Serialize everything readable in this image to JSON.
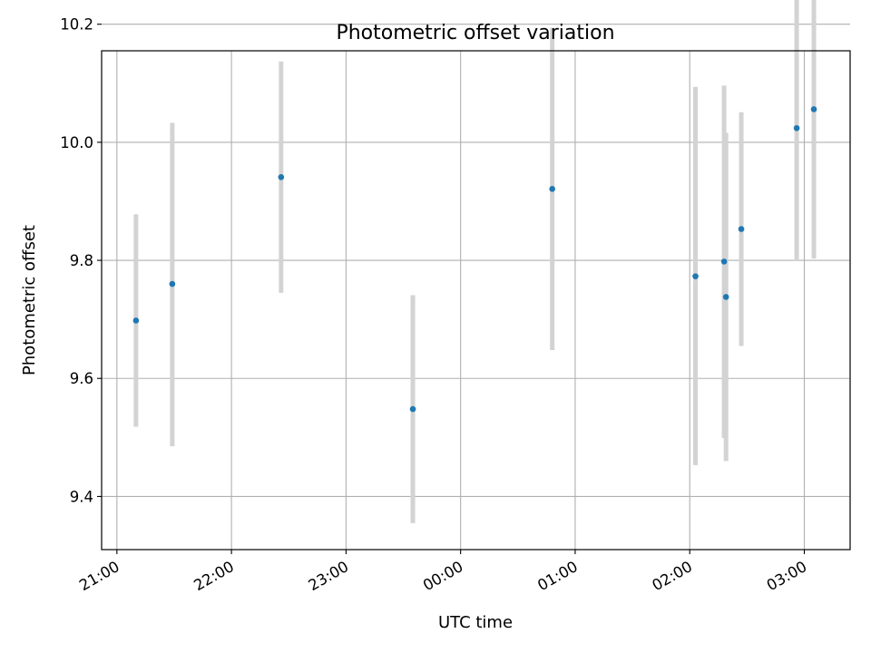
{
  "chart_data": {
    "type": "scatter",
    "title": "Photometric offset variation",
    "xlabel": "UTC time",
    "ylabel": "Photometric offset",
    "x_is_time": true,
    "x_axis_start_date": "2000-01-01",
    "xlim": [
      "2000-01-01T20:52",
      "2000-01-02T03:24"
    ],
    "ylim": [
      9.31,
      10.155
    ],
    "x_ticks": [
      {
        "time": "2000-01-01T21:00",
        "label": "21:00"
      },
      {
        "time": "2000-01-01T22:00",
        "label": "22:00"
      },
      {
        "time": "2000-01-01T23:00",
        "label": "23:00"
      },
      {
        "time": "2000-01-02T00:00",
        "label": "00:00"
      },
      {
        "time": "2000-01-02T01:00",
        "label": "01:00"
      },
      {
        "time": "2000-01-02T02:00",
        "label": "02:00"
      },
      {
        "time": "2000-01-02T03:00",
        "label": "03:00"
      }
    ],
    "y_ticks": [
      9.4,
      9.6,
      9.8,
      10.0,
      10.2
    ],
    "y_tick_labels": [
      "9.4",
      "9.6",
      "9.8",
      "10.0",
      "10.2"
    ],
    "grid": true,
    "legend": false,
    "points": [
      {
        "t": "2000-01-01T21:10",
        "y": 9.698,
        "err_low": 9.518,
        "err_high": 9.878
      },
      {
        "t": "2000-01-01T21:29",
        "y": 9.76,
        "err_low": 9.485,
        "err_high": 10.033
      },
      {
        "t": "2000-01-01T22:26",
        "y": 9.941,
        "err_low": 9.745,
        "err_high": 10.137
      },
      {
        "t": "2000-01-01T23:35",
        "y": 9.548,
        "err_low": 9.355,
        "err_high": 9.741
      },
      {
        "t": "2000-01-02T00:48",
        "y": 9.921,
        "err_low": 9.648,
        "err_high": 10.194
      },
      {
        "t": "2000-01-02T02:03",
        "y": 9.773,
        "err_low": 9.453,
        "err_high": 10.094
      },
      {
        "t": "2000-01-02T02:18",
        "y": 9.798,
        "err_low": 9.499,
        "err_high": 10.096
      },
      {
        "t": "2000-01-02T02:19",
        "y": 9.738,
        "err_low": 9.46,
        "err_high": 10.016
      },
      {
        "t": "2000-01-02T02:27",
        "y": 9.853,
        "err_low": 9.655,
        "err_high": 10.051
      },
      {
        "t": "2000-01-02T02:56",
        "y": 10.024,
        "err_low": 9.8,
        "err_high": 10.248
      },
      {
        "t": "2000-01-02T03:05",
        "y": 10.056,
        "err_low": 9.803,
        "err_high": 10.308
      }
    ],
    "colors": {
      "marker": "#1f77b4",
      "error_bar": "#d3d3d3",
      "grid": "#b0b0b0",
      "axes": "#000000",
      "background": "#ffffff"
    }
  }
}
